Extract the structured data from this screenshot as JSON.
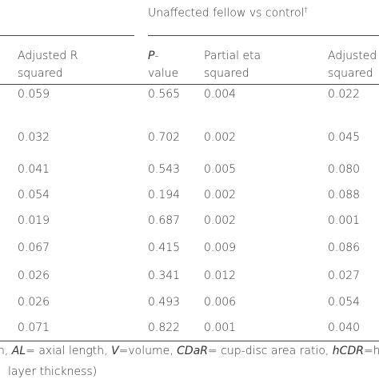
{
  "group_title": [
    "Unaffected fellow vs control",
    "†"
  ],
  "headers": [
    {
      "line1": [
        "Adjusted R"
      ],
      "line2": "squared"
    },
    {
      "line1": [
        "P",
        "-"
      ],
      "line2": "value"
    },
    {
      "line1": [
        "Partial eta"
      ],
      "line2": "squared"
    },
    {
      "line1": [
        "Adjusted"
      ],
      "line2": "squared"
    }
  ],
  "table": {
    "rows": [
      [
        "0.059",
        "0.565",
        "0.004",
        "0.022"
      ],
      [
        "0.032",
        "0.702",
        "0.002",
        "0.045"
      ],
      [
        "0.041",
        "0.543",
        "0.005",
        "0.080"
      ],
      [
        "0.054",
        "0.194",
        "0.002",
        "0.088"
      ],
      [
        "0.019",
        "0.687",
        "0.002",
        "0.001"
      ],
      [
        "0.067",
        "0.415",
        "0.009",
        "0.086"
      ],
      [
        "0.026",
        "0.341",
        "0.012",
        "0.027"
      ],
      [
        "0.026",
        "0.493",
        "0.006",
        "0.054"
      ],
      [
        "0.071",
        "0.822",
        "0.001",
        "0.040"
      ]
    ]
  },
  "footer": {
    "line1": [
      "n, ",
      "AL",
      "= axial length, ",
      "V",
      "=volume, ",
      "CDaR",
      "= cup-disc area ratio, ",
      "hCDR",
      "=hori"
    ],
    "line2": "layer thickness)"
  }
}
